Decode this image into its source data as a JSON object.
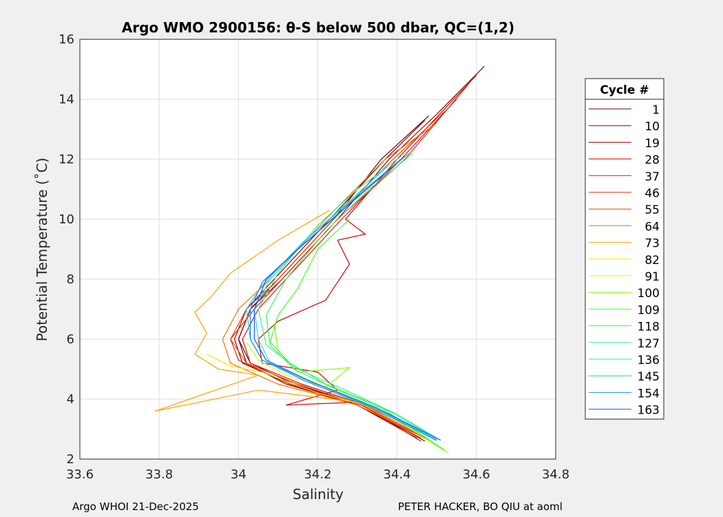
{
  "chart_data": {
    "type": "line",
    "title": "Argo WMO 2900156: θ-S below 500 dbar,  QC=(1,2)",
    "xlabel": "Salinity",
    "ylabel": "Potential Temperature (˚C)",
    "xlim": [
      33.6,
      34.8
    ],
    "ylim": [
      2,
      16
    ],
    "xticks": [
      "33.6",
      "33.8",
      "34",
      "34.2",
      "34.4",
      "34.6",
      "34.8"
    ],
    "yticks": [
      "2",
      "4",
      "6",
      "8",
      "10",
      "12",
      "14",
      "16"
    ],
    "grid": true,
    "legend": {
      "title": "Cycle #",
      "placement": "right-outside"
    },
    "series": [
      {
        "name": "1",
        "color": "#6a0000",
        "points": [
          [
            34.48,
            13.45
          ],
          [
            34.36,
            12
          ],
          [
            34.24,
            10
          ],
          [
            34.1,
            8
          ],
          [
            34.03,
            7
          ],
          [
            34.0,
            6
          ],
          [
            34.02,
            5.2
          ],
          [
            34.12,
            4.5
          ],
          [
            34.3,
            3.8
          ],
          [
            34.46,
            2.7
          ]
        ]
      },
      {
        "name": "10",
        "color": "#820000",
        "points": [
          [
            34.62,
            15.1
          ],
          [
            34.5,
            13.5
          ],
          [
            34.38,
            12
          ],
          [
            34.25,
            10
          ],
          [
            34.11,
            8
          ],
          [
            34.03,
            7
          ],
          [
            34.0,
            6
          ],
          [
            34.03,
            5.2
          ],
          [
            34.14,
            4.5
          ],
          [
            34.31,
            3.8
          ],
          [
            34.47,
            2.6
          ]
        ]
      },
      {
        "name": "19",
        "color": "#9a0000",
        "points": [
          [
            34.47,
            13.3
          ],
          [
            34.37,
            12
          ],
          [
            34.23,
            10
          ],
          [
            34.09,
            8
          ],
          [
            34.02,
            7
          ],
          [
            33.99,
            6
          ],
          [
            34.01,
            5.2
          ],
          [
            34.13,
            4.5
          ],
          [
            34.3,
            3.8
          ],
          [
            34.45,
            2.7
          ]
        ]
      },
      {
        "name": "28",
        "color": "#d00000",
        "points": [
          [
            34.6,
            14.8
          ],
          [
            34.4,
            12
          ],
          [
            34.27,
            10
          ],
          [
            34.32,
            9.5
          ],
          [
            34.25,
            9.3
          ],
          [
            34.28,
            8.5
          ],
          [
            34.22,
            7.3
          ],
          [
            34.1,
            6.6
          ],
          [
            34.05,
            6
          ],
          [
            34.06,
            5.2
          ],
          [
            34.2,
            4.9
          ],
          [
            34.25,
            4.3
          ],
          [
            34.12,
            3.8
          ],
          [
            34.3,
            3.9
          ],
          [
            34.46,
            2.6
          ]
        ]
      },
      {
        "name": "37",
        "color": "#e01010",
        "points": [
          [
            34.55,
            14
          ],
          [
            34.41,
            12
          ],
          [
            34.26,
            10
          ],
          [
            34.12,
            8
          ],
          [
            34.05,
            7
          ],
          [
            34.01,
            6
          ],
          [
            34.03,
            5.2
          ],
          [
            34.16,
            4.5
          ],
          [
            34.32,
            3.8
          ],
          [
            34.48,
            2.65
          ]
        ]
      },
      {
        "name": "46",
        "color": "#e02800",
        "points": [
          [
            34.58,
            14.5
          ],
          [
            34.42,
            12
          ],
          [
            34.25,
            10
          ],
          [
            34.11,
            8
          ],
          [
            34.04,
            7
          ],
          [
            33.98,
            6
          ],
          [
            34.0,
            5.3
          ],
          [
            34.13,
            4.5
          ],
          [
            34.31,
            3.8
          ],
          [
            34.47,
            2.7
          ]
        ]
      },
      {
        "name": "55",
        "color": "#f04000",
        "points": [
          [
            34.52,
            13.6
          ],
          [
            34.39,
            12
          ],
          [
            34.24,
            10
          ],
          [
            34.1,
            8
          ],
          [
            34.02,
            7
          ],
          [
            33.98,
            6
          ],
          [
            34.02,
            5.2
          ],
          [
            34.15,
            4.5
          ],
          [
            34.31,
            3.8
          ],
          [
            34.46,
            2.7
          ]
        ]
      },
      {
        "name": "64",
        "color": "#f07000",
        "points": [
          [
            34.5,
            13.2
          ],
          [
            34.37,
            12
          ],
          [
            34.22,
            10
          ],
          [
            34.08,
            8
          ],
          [
            34.0,
            7
          ],
          [
            33.96,
            6
          ],
          [
            33.98,
            5.2
          ],
          [
            34.1,
            4.5
          ],
          [
            34.3,
            3.8
          ],
          [
            34.47,
            2.7
          ]
        ]
      },
      {
        "name": "73",
        "color": "#ffa000",
        "points": [
          [
            34.23,
            10.3
          ],
          [
            34.1,
            9.3
          ],
          [
            33.98,
            8.2
          ],
          [
            33.93,
            7.4
          ],
          [
            33.89,
            6.9
          ],
          [
            33.92,
            6.2
          ],
          [
            33.89,
            5.5
          ],
          [
            33.95,
            5.0
          ],
          [
            34.05,
            4.8
          ],
          [
            33.79,
            3.6
          ],
          [
            34.05,
            4.3
          ],
          [
            34.3,
            3.9
          ],
          [
            34.47,
            2.75
          ]
        ]
      },
      {
        "name": "82",
        "color": "#ffe000",
        "points": [
          [
            33.92,
            5.5
          ],
          [
            33.98,
            5.1
          ],
          [
            34.06,
            4.9
          ],
          [
            34.12,
            4.6
          ],
          [
            34.2,
            4.2
          ],
          [
            34.32,
            3.8
          ],
          [
            34.45,
            3.0
          ]
        ]
      },
      {
        "name": "91",
        "color": "#d0ff00",
        "points": [
          [
            34.02,
            5.9
          ],
          [
            34.05,
            5.3
          ],
          [
            34.12,
            4.8
          ],
          [
            34.22,
            4.4
          ],
          [
            34.33,
            3.8
          ],
          [
            34.47,
            2.9
          ]
        ]
      },
      {
        "name": "100",
        "color": "#80ff00",
        "points": [
          [
            34.09,
            6.5
          ],
          [
            34.1,
            5.6
          ],
          [
            34.15,
            4.9
          ],
          [
            34.28,
            5.05
          ],
          [
            34.22,
            4.4
          ],
          [
            34.35,
            3.7
          ],
          [
            34.53,
            2.2
          ]
        ]
      },
      {
        "name": "109",
        "color": "#40ff20",
        "points": [
          [
            34.28,
            10.0
          ],
          [
            34.2,
            9.0
          ],
          [
            34.15,
            7.7
          ],
          [
            34.1,
            6.8
          ],
          [
            34.08,
            5.9
          ],
          [
            34.13,
            5.2
          ],
          [
            34.22,
            4.5
          ],
          [
            34.35,
            3.8
          ],
          [
            34.52,
            2.3
          ]
        ]
      },
      {
        "name": "118",
        "color": "#40f060",
        "points": [
          [
            34.44,
            12.2
          ],
          [
            34.33,
            11
          ],
          [
            34.22,
            9.6
          ],
          [
            34.12,
            8.0
          ],
          [
            34.07,
            6.8
          ],
          [
            34.08,
            5.8
          ],
          [
            34.14,
            5.0
          ],
          [
            34.25,
            4.3
          ],
          [
            34.38,
            3.6
          ],
          [
            34.5,
            2.7
          ]
        ]
      },
      {
        "name": "127",
        "color": "#30f0a0",
        "points": [
          [
            34.41,
            12.1
          ],
          [
            34.3,
            11
          ],
          [
            34.2,
            9.8
          ],
          [
            34.1,
            8.2
          ],
          [
            34.05,
            7
          ],
          [
            34.07,
            5.8
          ],
          [
            34.15,
            5.0
          ],
          [
            34.27,
            4.3
          ],
          [
            34.4,
            3.5
          ],
          [
            34.5,
            2.7
          ]
        ]
      },
      {
        "name": "136",
        "color": "#30e0d0",
        "points": [
          [
            34.38,
            11.8
          ],
          [
            34.27,
            10.5
          ],
          [
            34.17,
            9.3
          ],
          [
            34.08,
            8
          ],
          [
            34.04,
            7
          ],
          [
            34.05,
            6
          ],
          [
            34.08,
            5.2
          ],
          [
            34.2,
            4.5
          ],
          [
            34.36,
            3.6
          ],
          [
            34.5,
            2.65
          ]
        ]
      },
      {
        "name": "145",
        "color": "#20c0f0",
        "points": [
          [
            34.43,
            12.2
          ],
          [
            34.3,
            10.8
          ],
          [
            34.16,
            9.2
          ],
          [
            34.06,
            7.8
          ],
          [
            34.02,
            7
          ],
          [
            34.03,
            6
          ],
          [
            34.06,
            5.3
          ],
          [
            34.18,
            4.6
          ],
          [
            34.35,
            3.7
          ],
          [
            34.5,
            2.65
          ]
        ]
      },
      {
        "name": "154",
        "color": "#1090f0",
        "points": [
          [
            34.42,
            12.1
          ],
          [
            34.28,
            10.5
          ],
          [
            34.15,
            9.0
          ],
          [
            34.06,
            7.9
          ],
          [
            34.03,
            7
          ],
          [
            34.03,
            6
          ],
          [
            34.06,
            5.3
          ],
          [
            34.17,
            4.6
          ],
          [
            34.34,
            3.7
          ],
          [
            34.5,
            2.62
          ]
        ]
      },
      {
        "name": "163",
        "color": "#0060ff",
        "points": [
          [
            34.41,
            12.0
          ],
          [
            34.27,
            10.4
          ],
          [
            34.15,
            9.0
          ],
          [
            34.07,
            8.0
          ],
          [
            34.04,
            7
          ],
          [
            34.04,
            6
          ],
          [
            34.07,
            5.3
          ],
          [
            34.18,
            4.6
          ],
          [
            34.35,
            3.7
          ],
          [
            34.51,
            2.63
          ]
        ]
      }
    ]
  },
  "footer": {
    "left": "Argo WHOI 21-Dec-2025",
    "right": "PETER HACKER, BO QIU at aoml"
  }
}
